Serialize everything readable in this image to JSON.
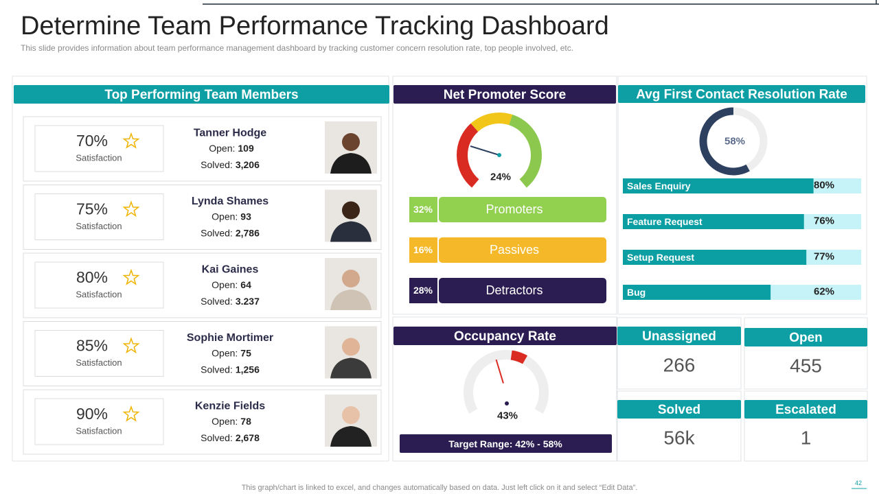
{
  "header": {
    "title": "Determine Team Performance Tracking Dashboard",
    "subtitle": "This slide provides  information  about team performance  management dashboard by tracking customer concern resolution rate, top people involved,  etc."
  },
  "team": {
    "title": "Top Performing Team Members",
    "members": [
      {
        "satisfaction": "70%",
        "satisfaction_label": "Satisfaction",
        "name": "Tanner Hodge",
        "open_label": "Open:",
        "open": "109",
        "solved_label": "Solved:",
        "solved": "3,206"
      },
      {
        "satisfaction": "75%",
        "satisfaction_label": "Satisfaction",
        "name": "Lynda Shames",
        "open_label": "Open:",
        "open": "93",
        "solved_label": "Solved:",
        "solved": "2,786"
      },
      {
        "satisfaction": "80%",
        "satisfaction_label": "Satisfaction",
        "name": "Kai Gaines",
        "open_label": "Open:",
        "open": "64",
        "solved_label": "Solved:",
        "solved": "3.237"
      },
      {
        "satisfaction": "85%",
        "satisfaction_label": "Satisfaction",
        "name": "Sophie Mortimer",
        "open_label": "Open:",
        "open": "75",
        "solved_label": "Solved:",
        "solved": "1,256"
      },
      {
        "satisfaction": "90%",
        "satisfaction_label": "Satisfaction",
        "name": "Kenzie Fields",
        "open_label": "Open:",
        "open": "78",
        "solved_label": "Solved:",
        "solved": "2,678"
      }
    ]
  },
  "nps": {
    "title": "Net Promoter Score",
    "gauge": {
      "value": 24,
      "label": "24%"
    },
    "segments": [
      {
        "share": "32%",
        "name": "Promoters",
        "color": "#92d050"
      },
      {
        "share": "16%",
        "name": "Passives",
        "color": "#f4b829"
      },
      {
        "share": "28%",
        "name": "Detractors",
        "color": "#2b1d52"
      }
    ]
  },
  "resolution": {
    "title": "Avg First Contact Resolution Rate",
    "donut": {
      "value": 58,
      "label": "58%"
    },
    "items": [
      {
        "name": "Sales Enquiry",
        "value": 80,
        "label": "80%"
      },
      {
        "name": "Feature Request",
        "value": 76,
        "label": "76%"
      },
      {
        "name": "Setup Request",
        "value": 77,
        "label": "77%"
      },
      {
        "name": "Bug",
        "value": 62,
        "label": "62%"
      }
    ]
  },
  "occupancy": {
    "title": "Occupancy Rate",
    "gauge": {
      "value": 43,
      "label": "43%"
    },
    "target": "Target Range: 42% - 58%"
  },
  "tickets": [
    {
      "title": "Unassigned",
      "value": "266"
    },
    {
      "title": "Open",
      "value": "455"
    },
    {
      "title": "Solved",
      "value": "56k"
    },
    {
      "title": "Escalated",
      "value": "1"
    }
  ],
  "footer": {
    "note": "This graph/chart is linked to excel, and changes automatically based on data. Just left click on it and select “Edit Data”.",
    "page": "42"
  }
}
